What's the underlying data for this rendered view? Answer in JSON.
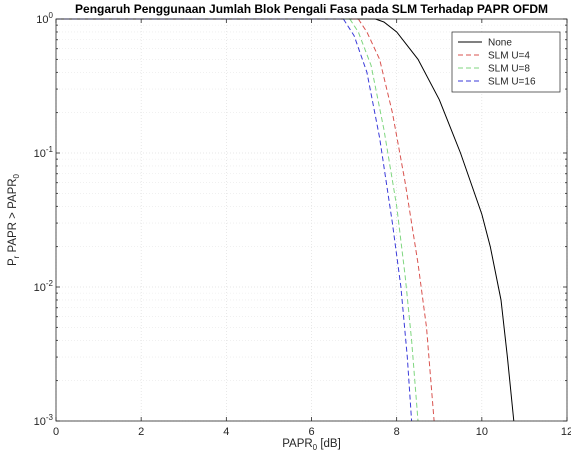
{
  "chart_data": {
    "type": "line",
    "title": "Pengaruh Penggunaan Jumlah Blok Pengali Fasa pada SLM Terhadap PAPR OFDM",
    "xlabel": {
      "main": "PAPR",
      "sub": "0",
      "rest": " [dB]"
    },
    "ylabel": {
      "p": "P",
      "p_sub": "r",
      "mid": " PAPR > PAPR",
      "end_sub": "0"
    },
    "xlim": [
      0,
      12
    ],
    "ylim": [
      0.001,
      1
    ],
    "yscale": "log",
    "grid": true,
    "legend_position": "top-right",
    "x_ticks": [
      "0",
      "2",
      "4",
      "6",
      "8",
      "10",
      "12"
    ],
    "y_ticks": [
      {
        "base": "10",
        "exp": "0"
      },
      {
        "base": "10",
        "exp": "-1"
      },
      {
        "base": "10",
        "exp": "-2"
      },
      {
        "base": "10",
        "exp": "-3"
      }
    ],
    "series": [
      {
        "name": "None",
        "color": "#000000",
        "dash": "solid",
        "x": [
          7.5,
          7.7,
          8.0,
          8.5,
          9.0,
          9.5,
          10.0,
          10.2,
          10.45,
          10.6,
          10.75
        ],
        "y": [
          1.0,
          0.95,
          0.8,
          0.5,
          0.25,
          0.1,
          0.035,
          0.02,
          0.008,
          0.003,
          0.001
        ]
      },
      {
        "name": "SLM U=4",
        "color": "#d9534f",
        "dash": "5,3",
        "x": [
          7.1,
          7.3,
          7.6,
          7.9,
          8.2,
          8.5,
          8.7,
          8.88
        ],
        "y": [
          1.0,
          0.8,
          0.5,
          0.2,
          0.06,
          0.015,
          0.005,
          0.001
        ]
      },
      {
        "name": "SLM U=8",
        "color": "#7fd67f",
        "dash": "5,3",
        "x": [
          6.9,
          7.1,
          7.4,
          7.7,
          8.0,
          8.2,
          8.35,
          8.5
        ],
        "y": [
          1.0,
          0.8,
          0.45,
          0.15,
          0.04,
          0.012,
          0.004,
          0.001
        ]
      },
      {
        "name": "SLM U=16",
        "color": "#3a3ad9",
        "dash": "5,3",
        "x": [
          6.75,
          7.0,
          7.3,
          7.6,
          7.9,
          8.1,
          8.25,
          8.35
        ],
        "y": [
          1.0,
          0.75,
          0.4,
          0.13,
          0.03,
          0.01,
          0.003,
          0.001
        ]
      }
    ]
  }
}
